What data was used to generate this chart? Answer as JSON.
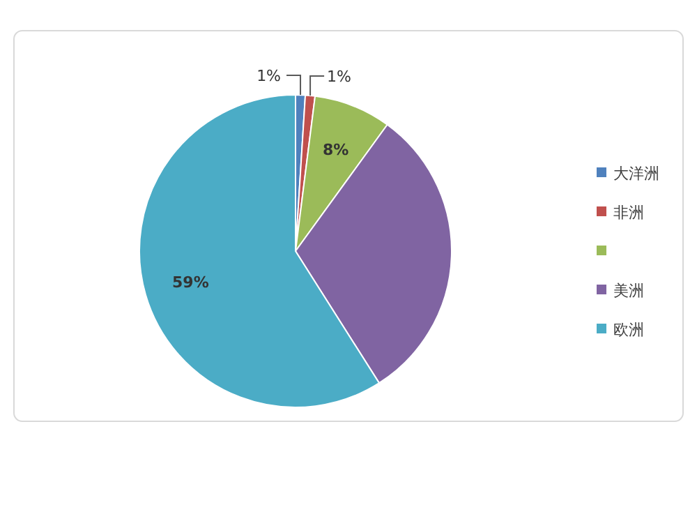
{
  "chart_data": {
    "type": "pie",
    "categories": [
      "大洋洲",
      "非洲",
      null,
      "美洲",
      "欧洲"
    ],
    "values": [
      1,
      1,
      8,
      31,
      59
    ],
    "colors": [
      "#4f81bd",
      "#c0504d",
      "#9bbb59",
      "#8064a2",
      "#4bacc6"
    ],
    "value_labels": [
      "1%",
      "1%",
      "8%",
      null,
      "59%"
    ],
    "legend": "right"
  }
}
